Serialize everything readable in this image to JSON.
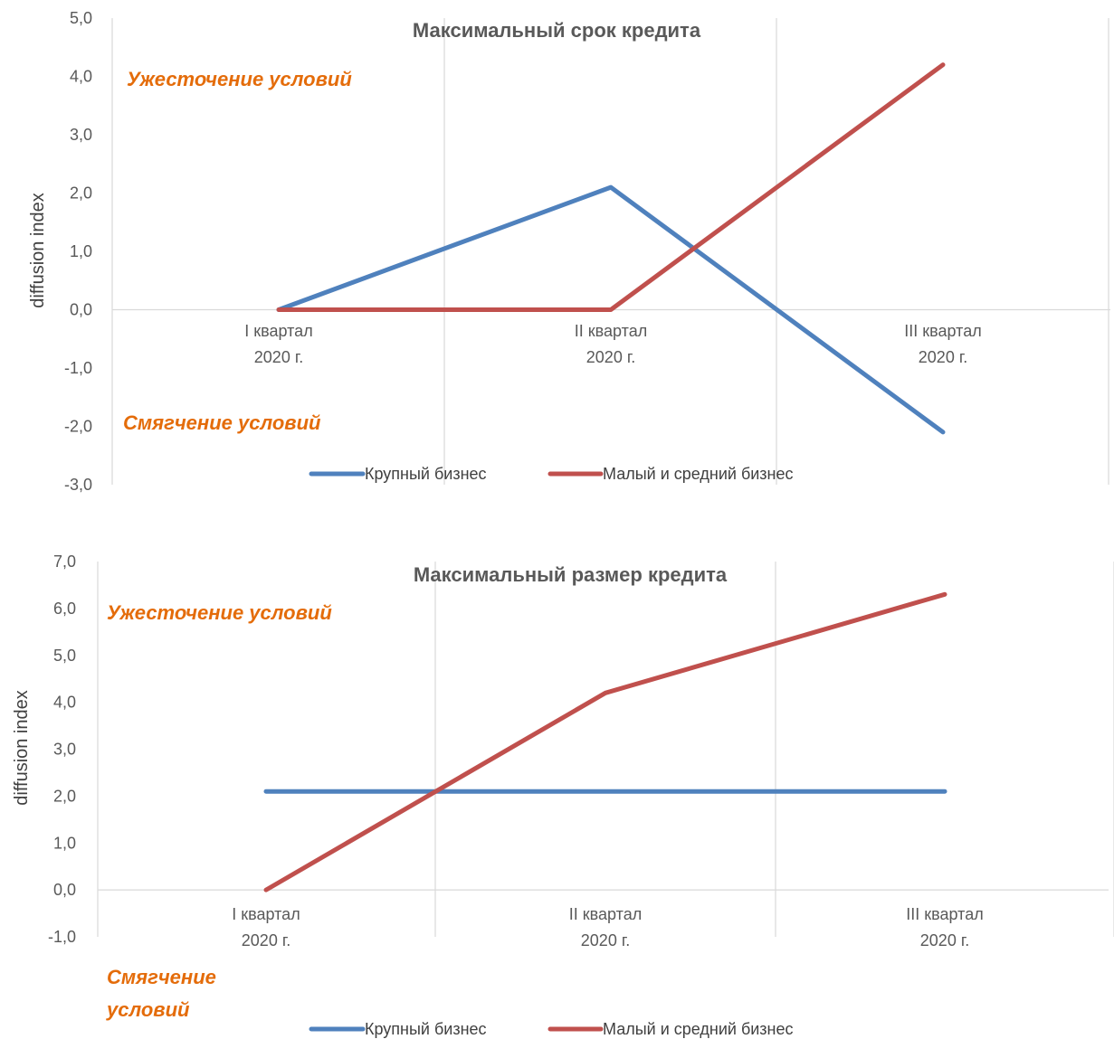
{
  "chart_data": [
    {
      "type": "line",
      "title": "Максимальный срок кредита",
      "ylabel": "diffusion index",
      "ylim": [
        -3,
        5
      ],
      "yticks": [
        "-3,0",
        "-2,0",
        "-1,0",
        "0,0",
        "1,0",
        "2,0",
        "3,0",
        "4,0",
        "5,0"
      ],
      "categories": [
        [
          "I квартал",
          "2020 г."
        ],
        [
          "II квартал",
          "2020 г."
        ],
        [
          "III квартал",
          "2020 г."
        ]
      ],
      "series": [
        {
          "name": "Крупный бизнес",
          "color": "#4F81BD",
          "values": [
            0.0,
            2.1,
            -2.1
          ]
        },
        {
          "name": "Малый и средний бизнес",
          "color": "#C0504D",
          "values": [
            0.0,
            0.0,
            4.2
          ]
        }
      ],
      "annotations": {
        "top": "Ужесточение условий",
        "bottom": "Смягчение условий"
      },
      "grid": "vertical",
      "legend": "bottom"
    },
    {
      "type": "line",
      "title": "Максимальный размер кредита",
      "ylabel": "diffusion index",
      "ylim": [
        -1,
        7
      ],
      "yticks": [
        "-1,0",
        "0,0",
        "1,0",
        "2,0",
        "3,0",
        "4,0",
        "5,0",
        "6,0",
        "7,0"
      ],
      "categories": [
        [
          "I квартал",
          "2020 г."
        ],
        [
          "II квартал",
          "2020 г."
        ],
        [
          "III квартал",
          "2020 г."
        ]
      ],
      "series": [
        {
          "name": "Крупный бизнес",
          "color": "#4F81BD",
          "values": [
            2.1,
            2.1,
            2.1
          ]
        },
        {
          "name": "Малый и средний бизнес",
          "color": "#C0504D",
          "values": [
            0.0,
            4.2,
            6.3
          ]
        }
      ],
      "annotations": {
        "top": "Ужесточение условий",
        "bottom": [
          "Смягчение",
          "условий"
        ]
      },
      "grid": "vertical",
      "legend": "bottom"
    }
  ]
}
